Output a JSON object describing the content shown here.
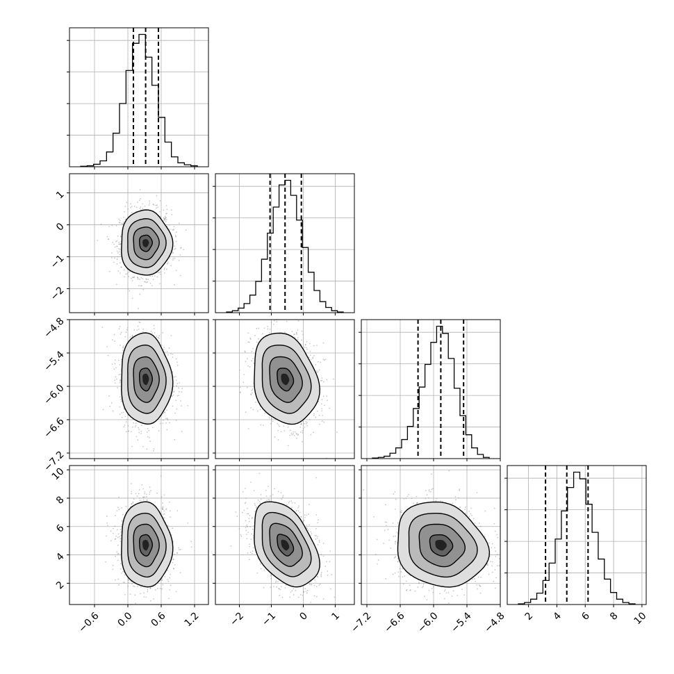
{
  "chart_data": {
    "type": "corner",
    "title": "",
    "parameters": [
      {
        "lim": [
          -1.05,
          1.45
        ],
        "ticks": [
          -0.6,
          0.0,
          0.6,
          1.2
        ],
        "tick_labels": [
          "−0.6",
          "0.0",
          "0.6",
          "1.2"
        ],
        "label": "",
        "quantiles": [
          0.1,
          0.32,
          0.55
        ]
      },
      {
        "lim": [
          -2.75,
          1.6
        ],
        "ticks": [
          -2,
          -1,
          0,
          1
        ],
        "tick_labels": [
          "−2",
          "−1",
          "0",
          "1"
        ],
        "label": "",
        "quantiles": [
          -1.04,
          -0.57,
          -0.06
        ]
      },
      {
        "lim": [
          -7.3,
          -4.8
        ],
        "ticks": [
          -7.2,
          -6.6,
          -6.0,
          -5.4,
          -4.8
        ],
        "tick_labels": [
          "−7.2",
          "−6.6",
          "−6.0",
          "−5.4",
          "−4.8"
        ],
        "label": "",
        "quantiles": [
          -6.28,
          -5.87,
          -5.46
        ]
      },
      {
        "lim": [
          0.5,
          10.3
        ],
        "ticks": [
          2,
          4,
          6,
          8,
          10
        ],
        "tick_labels": [
          "2",
          "4",
          "6",
          "8",
          "10"
        ],
        "label": "",
        "quantiles": [
          3.2,
          4.7,
          6.2
        ]
      }
    ],
    "histograms": [
      [
        1,
        2,
        5,
        12,
        30,
        68,
        128,
        195,
        250,
        268,
        222,
        165,
        100,
        50,
        20,
        8,
        4,
        2
      ],
      [
        1,
        3,
        7,
        14,
        27,
        48,
        82,
        122,
        162,
        196,
        203,
        180,
        142,
        100,
        62,
        34,
        17,
        8,
        3,
        1
      ],
      [
        1,
        2,
        4,
        9,
        18,
        32,
        54,
        84,
        120,
        158,
        195,
        222,
        210,
        168,
        118,
        72,
        40,
        18,
        7,
        2
      ],
      [
        1,
        3,
        8,
        17,
        36,
        62,
        98,
        140,
        175,
        198,
        188,
        150,
        108,
        68,
        38,
        18,
        8,
        3,
        1
      ]
    ],
    "pairs": [
      {
        "x": 0,
        "y": 1,
        "center": [
          0.32,
          -0.57
        ],
        "sd": [
          0.23,
          0.51
        ],
        "rho": 0.0
      },
      {
        "x": 0,
        "y": 2,
        "center": [
          0.32,
          -5.87
        ],
        "sd": [
          0.23,
          0.41
        ],
        "rho": -0.05
      },
      {
        "x": 1,
        "y": 2,
        "center": [
          -0.57,
          -5.87
        ],
        "sd": [
          0.51,
          0.41
        ],
        "rho": -0.2
      },
      {
        "x": 0,
        "y": 3,
        "center": [
          0.32,
          4.7
        ],
        "sd": [
          0.23,
          1.5
        ],
        "rho": -0.05
      },
      {
        "x": 1,
        "y": 3,
        "center": [
          -0.57,
          4.7
        ],
        "sd": [
          0.51,
          1.5
        ],
        "rho": -0.4
      },
      {
        "x": 2,
        "y": 3,
        "center": [
          -5.87,
          4.7
        ],
        "sd": [
          0.41,
          1.5
        ],
        "rho": -0.15
      }
    ],
    "contour_levels_sigma": [
      0.5,
      1.0,
      1.5,
      2.0
    ],
    "colors": {
      "lines": "#000000",
      "points": "#9a9a9a",
      "grid": "#b0b0b0"
    },
    "grid": true,
    "legend": "none"
  }
}
